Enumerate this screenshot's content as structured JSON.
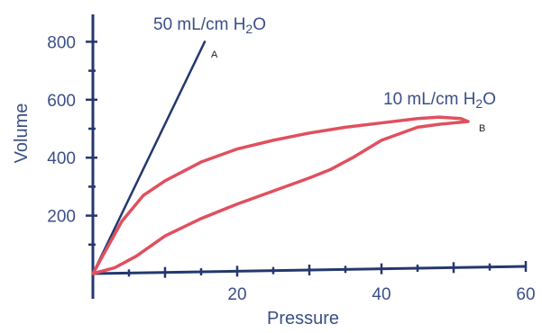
{
  "chart_data": {
    "type": "line",
    "title": "",
    "xlabel": "Pressure",
    "ylabel": "Volume",
    "xlim": [
      0,
      60
    ],
    "ylim": [
      0,
      800
    ],
    "x_ticks": [
      20,
      40,
      60
    ],
    "y_ticks": [
      200,
      400,
      600,
      800
    ],
    "grid": false,
    "colors": {
      "axis": "#24386e",
      "series_a": "#24386e",
      "series_b": "#e0505e"
    },
    "series": [
      {
        "id": "A",
        "label": "A",
        "annotation": "50 mL/cm H2O",
        "x": [
          0,
          15.5
        ],
        "y": [
          0,
          800
        ]
      },
      {
        "id": "B",
        "label": "B",
        "annotation": "10 mL/cm H2O",
        "x": [
          0,
          3,
          6,
          10,
          15,
          20,
          25,
          30,
          33,
          36,
          40,
          45,
          48,
          50,
          52,
          51,
          48,
          45,
          40,
          35,
          30,
          25,
          20,
          15,
          10,
          7,
          4,
          2,
          0
        ],
        "y": [
          0,
          20,
          60,
          130,
          190,
          240,
          285,
          330,
          360,
          400,
          460,
          505,
          515,
          520,
          525,
          535,
          540,
          535,
          520,
          505,
          485,
          460,
          430,
          385,
          320,
          270,
          180,
          90,
          0
        ]
      }
    ]
  }
}
